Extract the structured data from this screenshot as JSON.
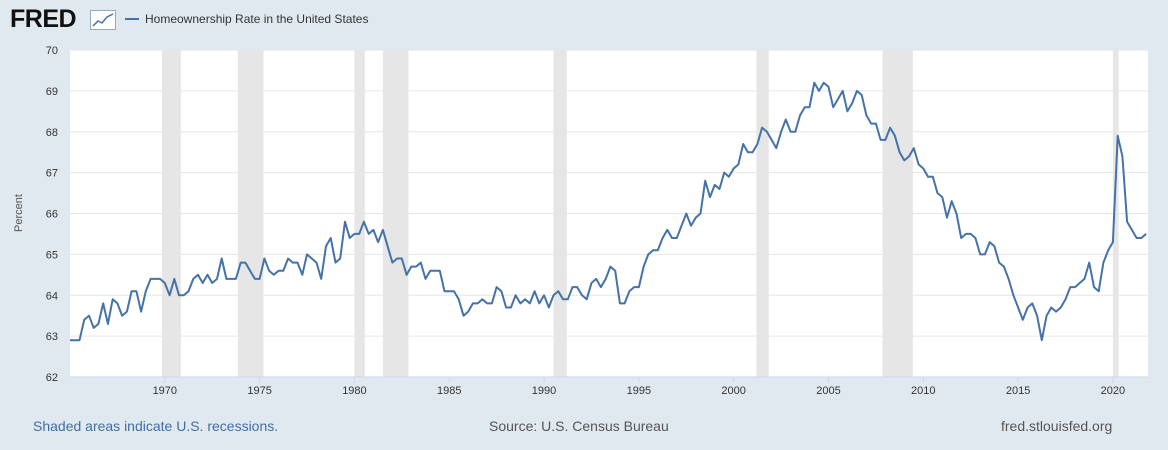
{
  "brand": {
    "logo_text": "FRED"
  },
  "footer": {
    "note": "Shaded areas indicate U.S. recessions.",
    "source": "Source: U.S. Census Bureau",
    "url": "fred.stlouisfed.org"
  },
  "colors": {
    "series": "#4572a7",
    "recession": "#e6e6e6",
    "background": "#e1e9f0",
    "grid": "#e6e6e6"
  },
  "chart_data": {
    "type": "line",
    "title": "",
    "xlabel": "",
    "ylabel": "Percent",
    "frequency": "quarterly",
    "x_start": "1965-Q1",
    "xlim": [
      1965,
      2021.85
    ],
    "ylim": [
      62,
      70
    ],
    "yticks": [
      62,
      63,
      64,
      65,
      66,
      67,
      68,
      69,
      70
    ],
    "xticks": [
      1970,
      1975,
      1980,
      1985,
      1990,
      1995,
      2000,
      2005,
      2010,
      2015,
      2020
    ],
    "grid": true,
    "legend_placement": "top-left",
    "series": [
      {
        "name": "Homeownership Rate in the United States",
        "values": [
          62.9,
          62.9,
          62.9,
          63.4,
          63.5,
          63.2,
          63.3,
          63.8,
          63.3,
          63.9,
          63.8,
          63.5,
          63.6,
          64.1,
          64.1,
          63.6,
          64.1,
          64.4,
          64.4,
          64.4,
          64.3,
          64.0,
          64.4,
          64.0,
          64.0,
          64.1,
          64.4,
          64.5,
          64.3,
          64.5,
          64.3,
          64.4,
          64.9,
          64.4,
          64.4,
          64.4,
          64.8,
          64.8,
          64.6,
          64.4,
          64.4,
          64.9,
          64.6,
          64.5,
          64.6,
          64.6,
          64.9,
          64.8,
          64.8,
          64.5,
          65.0,
          64.9,
          64.8,
          64.4,
          65.2,
          65.4,
          64.8,
          64.9,
          65.8,
          65.4,
          65.5,
          65.5,
          65.8,
          65.5,
          65.6,
          65.3,
          65.6,
          65.2,
          64.8,
          64.9,
          64.9,
          64.5,
          64.7,
          64.7,
          64.8,
          64.4,
          64.6,
          64.6,
          64.6,
          64.1,
          64.1,
          64.1,
          63.9,
          63.5,
          63.6,
          63.8,
          63.8,
          63.9,
          63.8,
          63.8,
          64.2,
          64.1,
          63.7,
          63.7,
          64.0,
          63.8,
          63.9,
          63.8,
          64.1,
          63.8,
          64.0,
          63.7,
          64.0,
          64.1,
          63.9,
          63.9,
          64.2,
          64.2,
          64.0,
          63.9,
          64.3,
          64.4,
          64.2,
          64.4,
          64.7,
          64.6,
          63.8,
          63.8,
          64.1,
          64.2,
          64.2,
          64.7,
          65.0,
          65.1,
          65.1,
          65.4,
          65.6,
          65.4,
          65.4,
          65.7,
          66.0,
          65.7,
          65.9,
          66.0,
          66.8,
          66.4,
          66.7,
          66.6,
          67.0,
          66.9,
          67.1,
          67.2,
          67.7,
          67.5,
          67.5,
          67.7,
          68.1,
          68.0,
          67.8,
          67.6,
          68.0,
          68.3,
          68.0,
          68.0,
          68.4,
          68.6,
          68.6,
          69.2,
          69.0,
          69.2,
          69.1,
          68.6,
          68.8,
          69.0,
          68.5,
          68.7,
          69.0,
          68.9,
          68.4,
          68.2,
          68.2,
          67.8,
          67.8,
          68.1,
          67.9,
          67.5,
          67.3,
          67.4,
          67.6,
          67.2,
          67.1,
          66.9,
          66.9,
          66.5,
          66.4,
          65.9,
          66.3,
          66.0,
          65.4,
          65.5,
          65.5,
          65.4,
          65.0,
          65.0,
          65.3,
          65.2,
          64.8,
          64.7,
          64.4,
          64.0,
          63.7,
          63.4,
          63.7,
          63.8,
          63.5,
          62.9,
          63.5,
          63.7,
          63.6,
          63.7,
          63.9,
          64.2,
          64.2,
          64.3,
          64.4,
          64.8,
          64.2,
          64.1,
          64.8,
          65.1,
          65.3,
          67.9,
          67.4,
          65.8,
          65.6,
          65.4,
          65.4,
          65.5
        ]
      }
    ],
    "recessions": [
      [
        1969.85,
        1970.85
      ],
      [
        1973.85,
        1975.2
      ],
      [
        1980.0,
        1980.55
      ],
      [
        1981.5,
        1982.85
      ],
      [
        1990.5,
        1991.2
      ],
      [
        2001.2,
        2001.85
      ],
      [
        2007.85,
        2009.45
      ],
      [
        2020.0,
        2020.3
      ]
    ]
  }
}
